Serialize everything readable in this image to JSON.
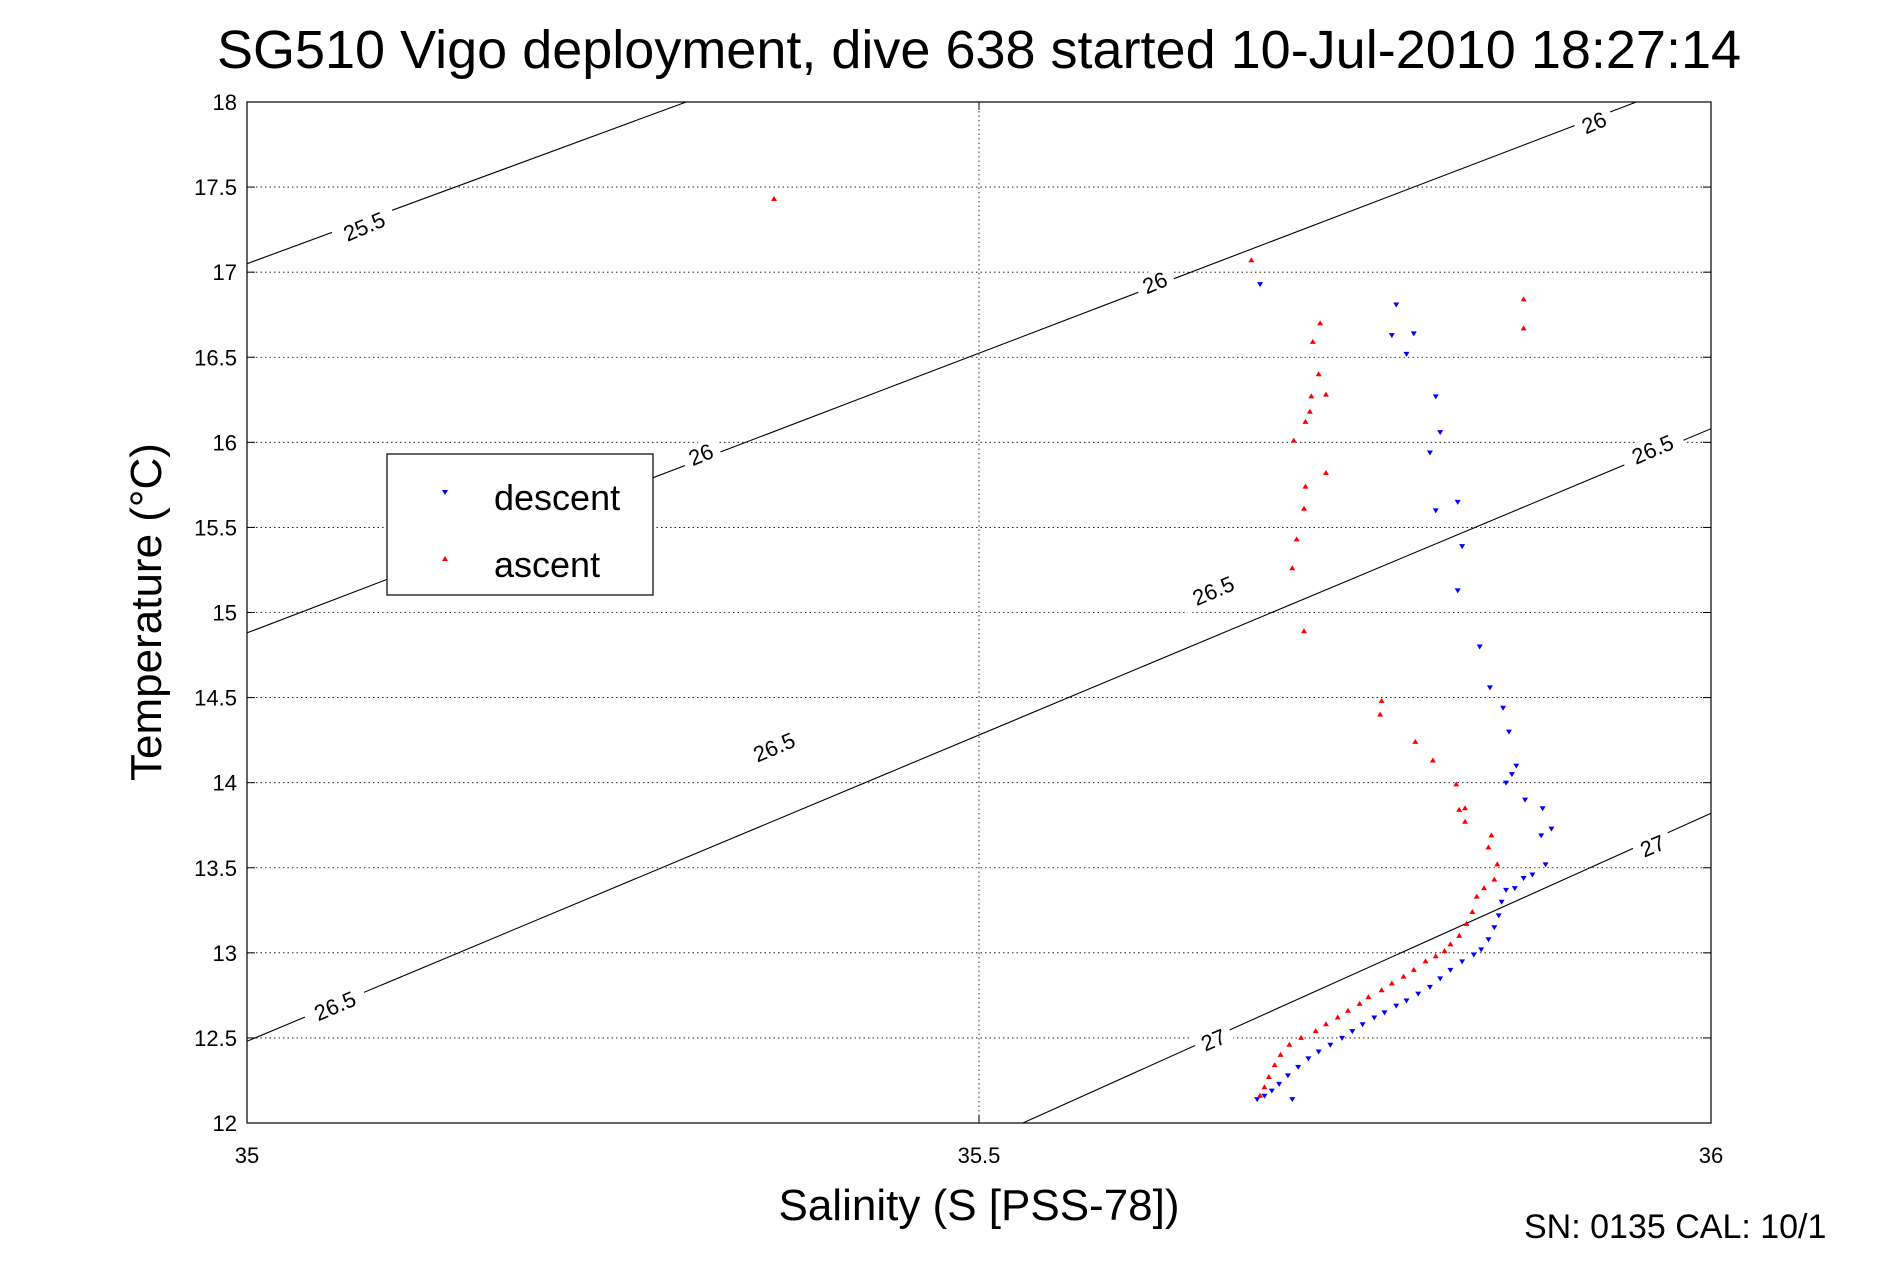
{
  "chart_data": {
    "type": "scatter",
    "title": "SG510 Vigo deployment, dive 638 started 10-Jul-2010 18:27:14",
    "xlabel": "Salinity (S [PSS-78])",
    "ylabel": "Temperature (°C)",
    "xlim": [
      35,
      36
    ],
    "ylim": [
      12,
      18
    ],
    "xticks": [
      "35",
      "35.5",
      "36"
    ],
    "yticks": [
      "12",
      "12.5",
      "13",
      "13.5",
      "14",
      "14.5",
      "15",
      "15.5",
      "16",
      "16.5",
      "17",
      "17.5",
      "18"
    ],
    "grid": true,
    "legend_position": "upper-left",
    "contour_labels": [
      {
        "text": "25.5",
        "s": 35.08,
        "t": 17.27
      },
      {
        "text": "26",
        "s": 35.62,
        "t": 16.94
      },
      {
        "text": "26",
        "s": 35.31,
        "t": 15.93
      },
      {
        "text": "26",
        "s": 35.92,
        "t": 17.88
      },
      {
        "text": "26.5",
        "s": 35.66,
        "t": 15.13
      },
      {
        "text": "26.5",
        "s": 35.36,
        "t": 14.21
      },
      {
        "text": "26.5",
        "s": 35.06,
        "t": 12.69
      },
      {
        "text": "26.5",
        "s": 35.96,
        "t": 15.96
      },
      {
        "text": "27",
        "s": 35.66,
        "t": 12.49
      },
      {
        "text": "27",
        "s": 35.96,
        "t": 13.63
      }
    ],
    "contours": [
      {
        "sigma": "25.5",
        "points": [
          [
            35.0,
            17.05
          ],
          [
            35.3,
            18.0
          ]
        ]
      },
      {
        "sigma": "26",
        "points": [
          [
            35.0,
            14.88
          ],
          [
            35.949,
            18.0
          ]
        ]
      },
      {
        "sigma": "26.5",
        "points": [
          [
            35.0,
            12.48
          ],
          [
            36.0,
            16.08
          ]
        ]
      },
      {
        "sigma": "27",
        "points": [
          [
            35.53,
            12.0
          ],
          [
            36.0,
            13.82
          ]
        ]
      }
    ],
    "series": [
      {
        "name": "descent",
        "color": "#0000ff",
        "marker": "triangle-down",
        "points": [
          [
            35.692,
            16.93
          ],
          [
            35.785,
            16.81
          ],
          [
            35.782,
            16.63
          ],
          [
            35.797,
            16.64
          ],
          [
            35.792,
            16.52
          ],
          [
            35.812,
            16.27
          ],
          [
            35.815,
            16.06
          ],
          [
            35.808,
            15.94
          ],
          [
            35.812,
            15.6
          ],
          [
            35.827,
            15.65
          ],
          [
            35.83,
            15.39
          ],
          [
            35.827,
            15.13
          ],
          [
            35.842,
            14.8
          ],
          [
            35.849,
            14.56
          ],
          [
            35.858,
            14.44
          ],
          [
            35.862,
            14.3
          ],
          [
            35.867,
            14.1
          ],
          [
            35.864,
            14.05
          ],
          [
            35.86,
            14.0
          ],
          [
            35.873,
            13.9
          ],
          [
            35.885,
            13.85
          ],
          [
            35.891,
            13.73
          ],
          [
            35.884,
            13.69
          ],
          [
            35.887,
            13.52
          ],
          [
            35.878,
            13.46
          ],
          [
            35.872,
            13.44
          ],
          [
            35.866,
            13.38
          ],
          [
            35.86,
            13.37
          ],
          [
            35.857,
            13.3
          ],
          [
            35.855,
            13.22
          ],
          [
            35.852,
            13.15
          ],
          [
            35.848,
            13.08
          ],
          [
            35.843,
            13.02
          ],
          [
            35.838,
            12.99
          ],
          [
            35.83,
            12.95
          ],
          [
            35.822,
            12.9
          ],
          [
            35.815,
            12.85
          ],
          [
            35.808,
            12.8
          ],
          [
            35.8,
            12.76
          ],
          [
            35.792,
            12.72
          ],
          [
            35.785,
            12.69
          ],
          [
            35.777,
            12.65
          ],
          [
            35.77,
            12.62
          ],
          [
            35.762,
            12.58
          ],
          [
            35.755,
            12.54
          ],
          [
            35.748,
            12.5
          ],
          [
            35.74,
            12.46
          ],
          [
            35.732,
            12.42
          ],
          [
            35.725,
            12.38
          ],
          [
            35.718,
            12.33
          ],
          [
            35.711,
            12.28
          ],
          [
            35.705,
            12.23
          ],
          [
            35.7,
            12.19
          ],
          [
            35.695,
            12.16
          ],
          [
            35.69,
            12.14
          ],
          [
            35.714,
            12.14
          ]
        ]
      },
      {
        "name": "ascent",
        "color": "#ff0000",
        "marker": "triangle-up",
        "points": [
          [
            35.36,
            17.43
          ],
          [
            35.686,
            17.07
          ],
          [
            35.872,
            16.84
          ],
          [
            35.872,
            16.67
          ],
          [
            35.733,
            16.7
          ],
          [
            35.728,
            16.59
          ],
          [
            35.732,
            16.4
          ],
          [
            35.737,
            16.28
          ],
          [
            35.727,
            16.27
          ],
          [
            35.726,
            16.18
          ],
          [
            35.723,
            16.12
          ],
          [
            35.715,
            16.01
          ],
          [
            35.737,
            15.82
          ],
          [
            35.723,
            15.74
          ],
          [
            35.722,
            15.61
          ],
          [
            35.717,
            15.43
          ],
          [
            35.714,
            15.26
          ],
          [
            35.722,
            14.89
          ],
          [
            35.775,
            14.48
          ],
          [
            35.774,
            14.4
          ],
          [
            35.798,
            14.24
          ],
          [
            35.81,
            14.13
          ],
          [
            35.826,
            13.99
          ],
          [
            35.832,
            13.85
          ],
          [
            35.828,
            13.84
          ],
          [
            35.832,
            13.77
          ],
          [
            35.85,
            13.69
          ],
          [
            35.848,
            13.62
          ],
          [
            35.854,
            13.52
          ],
          [
            35.852,
            13.43
          ],
          [
            35.845,
            13.38
          ],
          [
            35.84,
            13.33
          ],
          [
            35.837,
            13.24
          ],
          [
            35.833,
            13.17
          ],
          [
            35.828,
            13.1
          ],
          [
            35.822,
            13.05
          ],
          [
            35.818,
            13.01
          ],
          [
            35.812,
            12.98
          ],
          [
            35.805,
            12.95
          ],
          [
            35.797,
            12.9
          ],
          [
            35.79,
            12.86
          ],
          [
            35.782,
            12.82
          ],
          [
            35.775,
            12.78
          ],
          [
            35.766,
            12.74
          ],
          [
            35.76,
            12.7
          ],
          [
            35.752,
            12.66
          ],
          [
            35.745,
            12.62
          ],
          [
            35.737,
            12.58
          ],
          [
            35.73,
            12.54
          ],
          [
            35.72,
            12.5
          ],
          [
            35.712,
            12.46
          ],
          [
            35.706,
            12.4
          ],
          [
            35.702,
            12.34
          ],
          [
            35.698,
            12.27
          ],
          [
            35.695,
            12.21
          ],
          [
            35.692,
            12.16
          ]
        ]
      }
    ]
  },
  "footer": {
    "text": "SN: 0135  CAL: 10/1"
  }
}
